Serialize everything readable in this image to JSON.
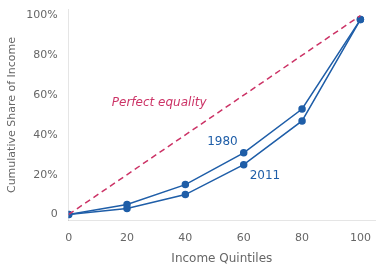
{
  "chart_data": {
    "type": "line",
    "x": [
      0,
      20,
      40,
      60,
      80,
      100
    ],
    "series": [
      {
        "name": "Perfect equality",
        "x": [
          0,
          100
        ],
        "values": [
          0,
          100
        ],
        "color": "#cc3366",
        "line_style": "dashed"
      },
      {
        "name": "1980",
        "values": [
          0,
          5,
          15,
          31,
          53,
          98
        ],
        "color": "#1f5ea8",
        "marker": "circle",
        "line_style": "solid"
      },
      {
        "name": "2011",
        "values": [
          0,
          3,
          10,
          25,
          47,
          98
        ],
        "color": "#1f5ea8",
        "marker": "circle",
        "line_style": "solid"
      }
    ],
    "x_label": "Income Quintiles",
    "y_label": "Cumulative Share of Income",
    "xlim": [
      0,
      105
    ],
    "xticks": [
      0,
      20,
      40,
      60,
      80,
      100
    ],
    "ylim": [
      -3,
      103
    ],
    "yticks": [
      0,
      {
        "value": 20,
        "label": "20%"
      },
      {
        "value": 40,
        "label": "40%"
      },
      {
        "value": 60,
        "label": "60%"
      },
      {
        "value": 80,
        "label": "80%"
      },
      {
        "value": 100,
        "label": "100%"
      }
    ],
    "grid": false
  }
}
